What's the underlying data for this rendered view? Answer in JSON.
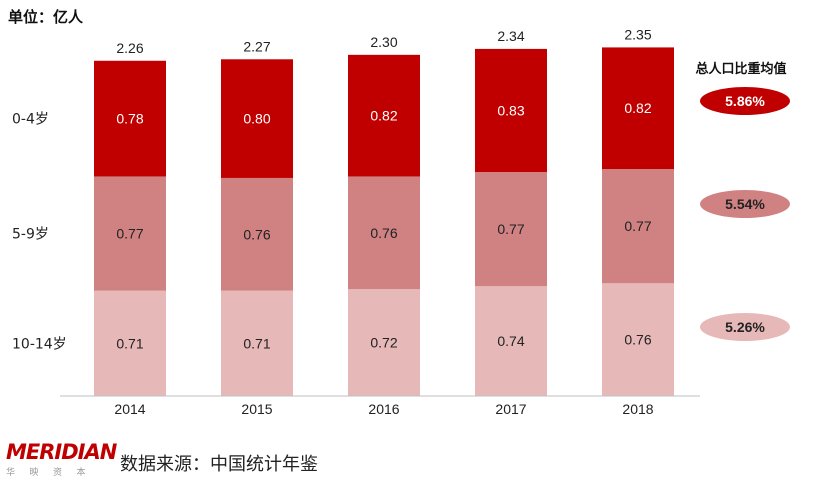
{
  "unit": "单位：亿人",
  "legend_title": "总人口比重均值",
  "averages": [
    {
      "value": "5.86%",
      "color": "#c00000",
      "text_color": "#ffffff"
    },
    {
      "value": "5.54%",
      "color": "#d08282",
      "text_color": "#222222"
    },
    {
      "value": "5.26%",
      "color": "#e6b9b8",
      "text_color": "#222222"
    }
  ],
  "source": "数据来源：中国统计年鉴",
  "logo": {
    "name": "MERIDIAN",
    "sub": "华 映 资 本"
  },
  "chart_data": {
    "type": "bar",
    "stacked": true,
    "categories": [
      "2014",
      "2015",
      "2016",
      "2017",
      "2018"
    ],
    "series": [
      {
        "name": "10-14岁",
        "color": "#e6b9b8",
        "values": [
          0.71,
          0.71,
          0.72,
          0.74,
          0.76
        ]
      },
      {
        "name": "5-9岁",
        "color": "#d08282",
        "values": [
          0.77,
          0.76,
          0.76,
          0.77,
          0.77
        ]
      },
      {
        "name": "0-4岁",
        "color": "#c00000",
        "values": [
          0.78,
          0.8,
          0.82,
          0.83,
          0.82
        ]
      }
    ],
    "totals": [
      2.26,
      2.27,
      2.3,
      2.34,
      2.35
    ],
    "value_labels": [
      [
        "0.71",
        "0.71",
        "0.72",
        "0.74",
        "0.76"
      ],
      [
        "0.77",
        "0.76",
        "0.76",
        "0.77",
        "0.77"
      ],
      [
        "0.78",
        "0.80",
        "0.82",
        "0.83",
        "0.82"
      ]
    ],
    "total_labels": [
      "2.26",
      "2.27",
      "2.30",
      "2.34",
      "2.35"
    ],
    "ylim": [
      0,
      2.4
    ],
    "grid": false
  }
}
